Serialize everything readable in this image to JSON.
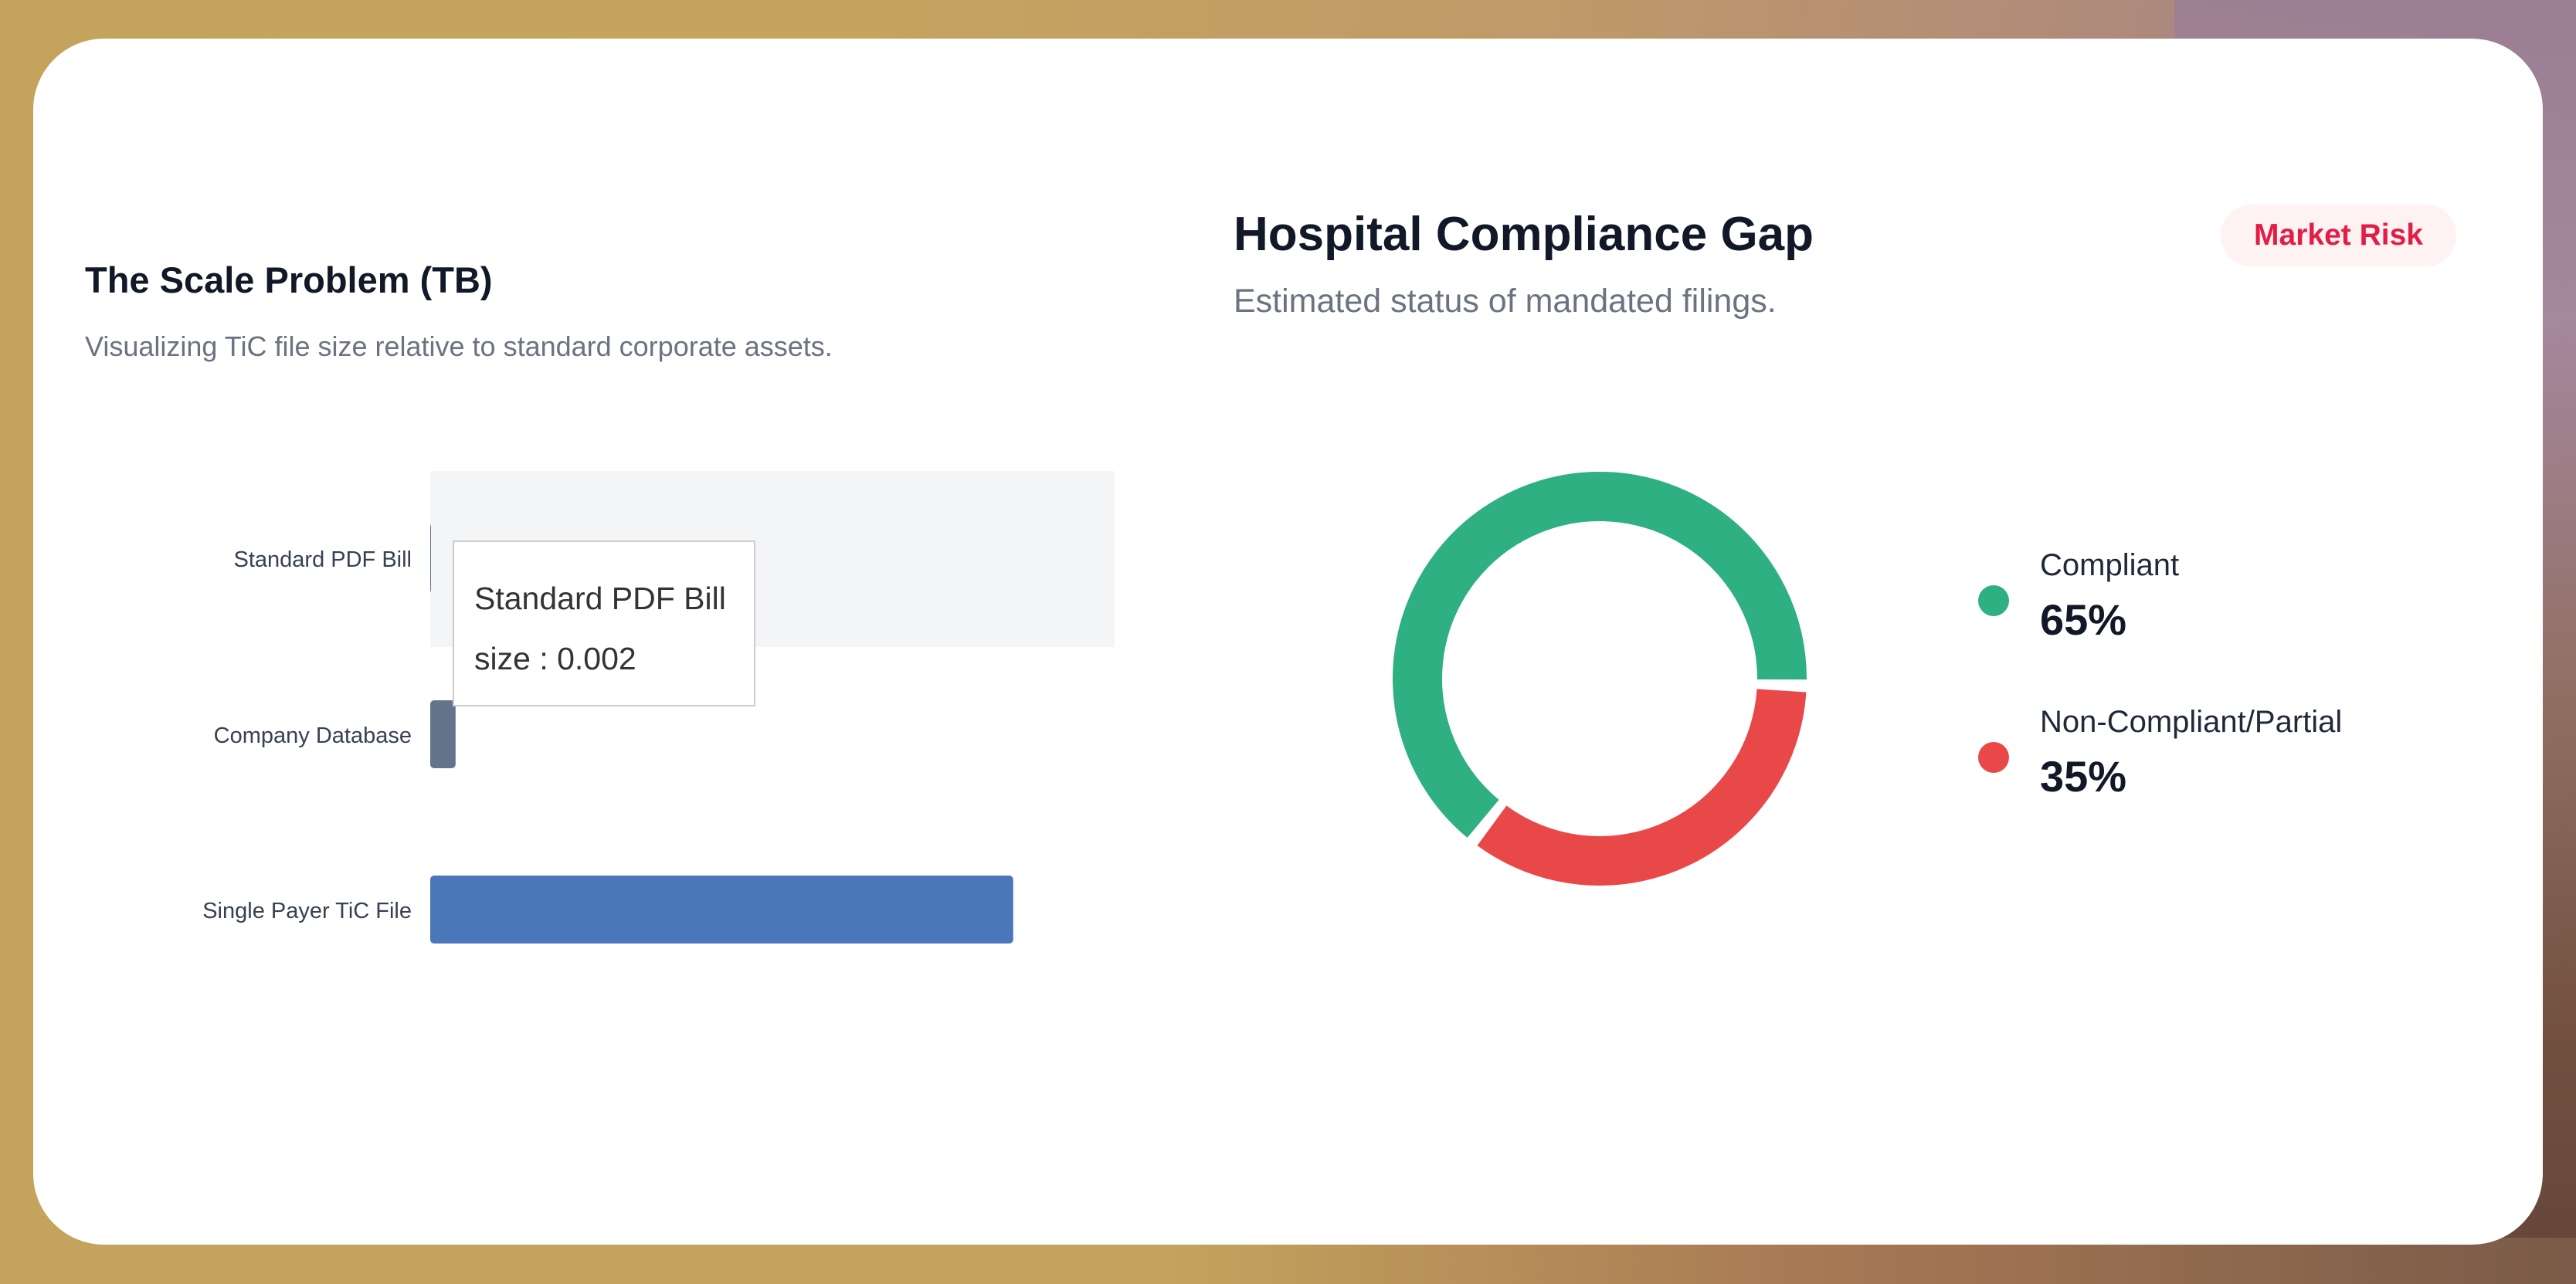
{
  "scale_panel": {
    "title": "The Scale Problem (TB)",
    "subtitle": "Visualizing TiC file size relative to standard corporate assets.",
    "tooltip": {
      "category": "Standard PDF Bill",
      "series_label": "size",
      "value": "0.002"
    }
  },
  "compliance_panel": {
    "title": "Hospital Compliance Gap",
    "subtitle": "Estimated status of mandated filings.",
    "badge": "Market Risk",
    "legend": [
      {
        "label": "Compliant",
        "value_text": "65%",
        "color": "#2fb082"
      },
      {
        "label": "Non-Compliant/Partial",
        "value_text": "35%",
        "color": "#e94848"
      }
    ]
  },
  "chart_data": [
    {
      "type": "bar",
      "orientation": "horizontal",
      "title": "The Scale Problem (TB)",
      "subtitle": "Visualizing TiC file size relative to standard corporate assets.",
      "categories": [
        "Standard PDF Bill",
        "Company Database",
        "Single Payer TiC File"
      ],
      "series": [
        {
          "name": "size",
          "values": [
            0.002,
            0.5,
            11.5
          ]
        }
      ],
      "xlim": [
        0,
        13.5
      ],
      "highlighted_category": "Standard PDF Bill",
      "colors": [
        "#64748b",
        "#64748b",
        "#4a76ba"
      ],
      "grid": false,
      "legend": "none"
    },
    {
      "type": "pie",
      "variant": "donut",
      "title": "Hospital Compliance Gap",
      "subtitle": "Estimated status of mandated filings.",
      "categories": [
        "Compliant",
        "Non-Compliant/Partial"
      ],
      "values": [
        65,
        35
      ],
      "colors": [
        "#2fb082",
        "#e94848"
      ],
      "legend": "right"
    }
  ]
}
